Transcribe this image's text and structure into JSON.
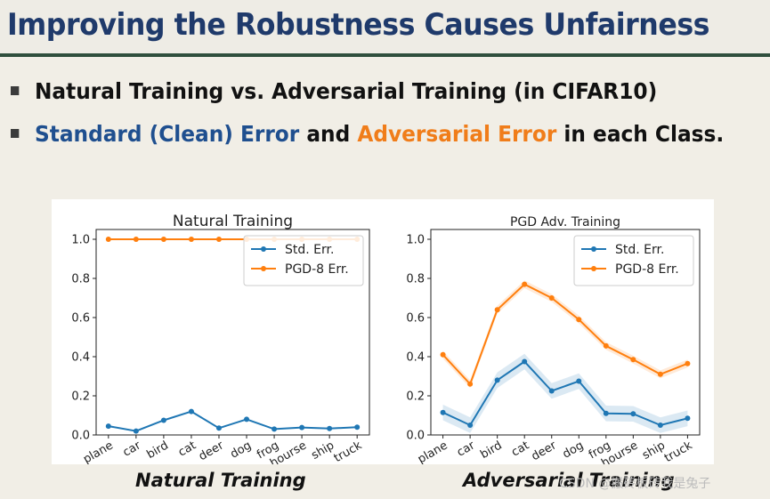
{
  "slide": {
    "title": "Improving the Robustness Causes Unfairness",
    "bullet1": "Natural Training vs. Adversarial Training (in CIFAR10)",
    "bullet2_part1": "Standard (Clean) Error",
    "bullet2_part2": " and ",
    "bullet2_part3": "Adversarial Error",
    "bullet2_part4": " in each Class.",
    "caption_left": "Natural Training",
    "caption_right": "Adversarial Training",
    "watermark": "CSDN @搬砖板砖我是兔子"
  },
  "colors": {
    "title": "#1f3a6b",
    "blue_text": "#1f4f8f",
    "orange_text": "#f07d1a",
    "series_blue": "#1f77b4",
    "series_orange": "#ff7f0e",
    "rule": "#2f4f3d"
  },
  "chart_data": [
    {
      "type": "line",
      "title": "Natural Training",
      "categories": [
        "plane",
        "car",
        "bird",
        "cat",
        "deer",
        "dog",
        "frog",
        "hourse",
        "ship",
        "truck"
      ],
      "yticks": [
        "0.0",
        "0.2",
        "0.4",
        "0.6",
        "0.8",
        "1.0"
      ],
      "ylim": [
        0,
        1.05
      ],
      "legend_position": "top-right",
      "series": [
        {
          "name": "Std. Err.",
          "color": "#1f77b4",
          "values": [
            0.045,
            0.02,
            0.075,
            0.12,
            0.035,
            0.08,
            0.03,
            0.038,
            0.033,
            0.04
          ]
        },
        {
          "name": "PGD-8 Err.",
          "color": "#ff7f0e",
          "values": [
            1.0,
            1.0,
            1.0,
            1.0,
            1.0,
            1.0,
            1.0,
            1.0,
            1.0,
            1.0
          ]
        }
      ]
    },
    {
      "type": "line",
      "title": "PGD Adv. Training",
      "categories": [
        "plane",
        "car",
        "bird",
        "cat",
        "deer",
        "dog",
        "frog",
        "hourse",
        "ship",
        "truck"
      ],
      "yticks": [
        "0.0",
        "0.2",
        "0.4",
        "0.6",
        "0.8",
        "1.0"
      ],
      "ylim": [
        0,
        1.05
      ],
      "legend_position": "top-right",
      "series": [
        {
          "name": "Std. Err.",
          "color": "#1f77b4",
          "values": [
            0.115,
            0.05,
            0.28,
            0.375,
            0.225,
            0.275,
            0.11,
            0.108,
            0.05,
            0.085
          ],
          "band": 0.04
        },
        {
          "name": "PGD-8 Err.",
          "color": "#ff7f0e",
          "values": [
            0.41,
            0.26,
            0.64,
            0.77,
            0.7,
            0.59,
            0.455,
            0.385,
            0.31,
            0.365
          ],
          "band": 0.02
        }
      ]
    }
  ]
}
